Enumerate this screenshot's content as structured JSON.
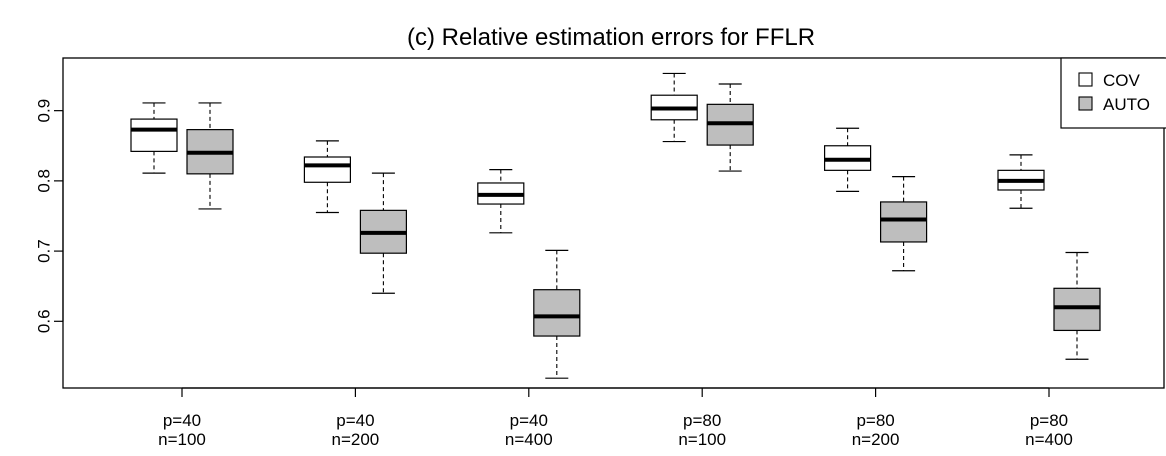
{
  "chart_data": {
    "type": "boxplot",
    "title": "(c) Relative estimation errors for FFLR",
    "xlabel": "",
    "ylabel": "",
    "ylim": [
      0.505,
      0.975
    ],
    "yticks": [
      "0.6",
      "0.7",
      "0.8",
      "0.9"
    ],
    "ytick_values": [
      0.6,
      0.7,
      0.8,
      0.9
    ],
    "groups": [
      {
        "label_line1": "p=40",
        "label_line2": "n=100"
      },
      {
        "label_line1": "p=40",
        "label_line2": "n=200"
      },
      {
        "label_line1": "p=40",
        "label_line2": "n=400"
      },
      {
        "label_line1": "p=80",
        "label_line2": "n=100"
      },
      {
        "label_line1": "p=80",
        "label_line2": "n=200"
      },
      {
        "label_line1": "p=80",
        "label_line2": "n=400"
      }
    ],
    "series": [
      {
        "name": "COV",
        "color": "#ffffff",
        "boxes": [
          {
            "min": 0.811,
            "q1": 0.842,
            "median": 0.873,
            "q3": 0.888,
            "max": 0.911
          },
          {
            "min": 0.755,
            "q1": 0.798,
            "median": 0.822,
            "q3": 0.834,
            "max": 0.857
          },
          {
            "min": 0.726,
            "q1": 0.767,
            "median": 0.78,
            "q3": 0.797,
            "max": 0.816
          },
          {
            "min": 0.856,
            "q1": 0.887,
            "median": 0.903,
            "q3": 0.922,
            "max": 0.953
          },
          {
            "min": 0.785,
            "q1": 0.815,
            "median": 0.83,
            "q3": 0.85,
            "max": 0.875
          },
          {
            "min": 0.761,
            "q1": 0.787,
            "median": 0.8,
            "q3": 0.815,
            "max": 0.837
          }
        ]
      },
      {
        "name": "AUTO",
        "color": "#bebebe",
        "boxes": [
          {
            "min": 0.76,
            "q1": 0.81,
            "median": 0.84,
            "q3": 0.873,
            "max": 0.911
          },
          {
            "min": 0.64,
            "q1": 0.697,
            "median": 0.726,
            "q3": 0.758,
            "max": 0.811
          },
          {
            "min": 0.519,
            "q1": 0.579,
            "median": 0.607,
            "q3": 0.645,
            "max": 0.701
          },
          {
            "min": 0.814,
            "q1": 0.851,
            "median": 0.882,
            "q3": 0.909,
            "max": 0.938
          },
          {
            "min": 0.672,
            "q1": 0.713,
            "median": 0.745,
            "q3": 0.77,
            "max": 0.806
          },
          {
            "min": 0.546,
            "q1": 0.587,
            "median": 0.62,
            "q3": 0.647,
            "max": 0.698
          }
        ]
      }
    ],
    "legend": {
      "position": "top-right",
      "entries": [
        "COV",
        "AUTO"
      ]
    },
    "grid": false
  }
}
